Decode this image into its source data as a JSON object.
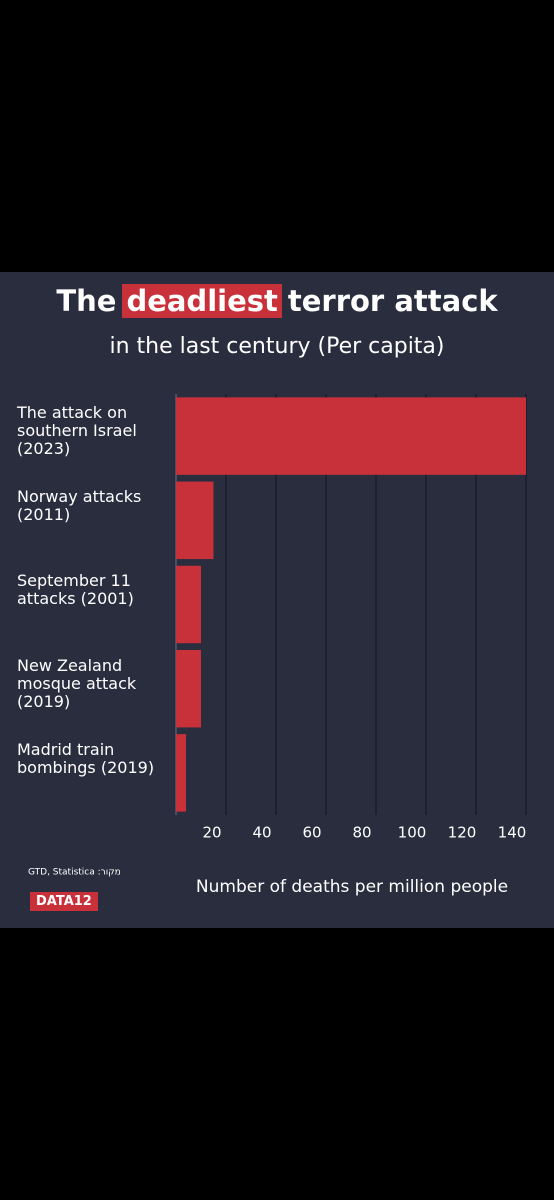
{
  "chart_data": {
    "type": "bar",
    "orientation": "horizontal",
    "title": [
      "The",
      "deadliest",
      "terror attack"
    ],
    "subtitle": "in the last century (Per capita)",
    "categories": [
      "The attack on southern Israel (2023)",
      "Norway attacks (2011)",
      "September 11 attacks (2001)",
      "New Zealand mosque attack (2019)",
      "Madrid train bombings (2019)"
    ],
    "values": [
      140,
      15,
      10,
      10,
      4
    ],
    "color": "#c8303a",
    "xlim": [
      0,
      140
    ],
    "xticks": [
      20,
      40,
      60,
      80,
      100,
      120,
      140
    ],
    "xlabel": "Number of deaths per million people",
    "grid": true,
    "source": "GTD, Statistica :מקור",
    "logo": "DATA12"
  }
}
